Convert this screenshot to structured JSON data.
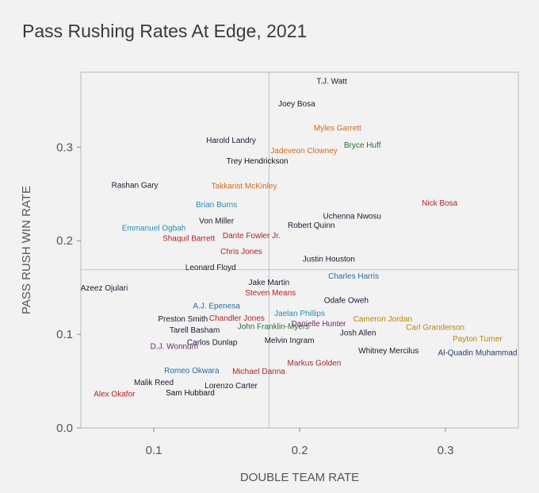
{
  "chart_data": {
    "type": "scatter",
    "title": "Pass Rushing Rates At Edge, 2021",
    "xlabel": "DOUBLE TEAM RATE",
    "ylabel": "PASS RUSH WIN RATE",
    "xlim": [
      0.05,
      0.35
    ],
    "ylim": [
      0.0,
      0.38
    ],
    "x_ticks": [
      {
        "value": 0.1,
        "label": "0.1"
      },
      {
        "value": 0.2,
        "label": "0.2"
      },
      {
        "value": 0.3,
        "label": "0.3"
      }
    ],
    "y_ticks": [
      {
        "value": 0.0,
        "label": "0.0"
      },
      {
        "value": 0.1,
        "label": "0.1"
      },
      {
        "value": 0.2,
        "label": "0.2"
      },
      {
        "value": 0.3,
        "label": "0.3"
      }
    ],
    "reference_lines": {
      "x": 0.179,
      "y": 0.169
    },
    "grid": false,
    "points": [
      {
        "label": "T.J. Watt",
        "x": 0.222,
        "y": 0.371,
        "color": "#1a1a2e"
      },
      {
        "label": "Joey Bosa",
        "x": 0.198,
        "y": 0.347,
        "color": "#1a1a2e"
      },
      {
        "label": "Myles Garrett",
        "x": 0.226,
        "y": 0.321,
        "color": "#d2691e"
      },
      {
        "label": "Harold Landry",
        "x": 0.153,
        "y": 0.308,
        "color": "#1a1a2e"
      },
      {
        "label": "Bryce Huff",
        "x": 0.243,
        "y": 0.303,
        "color": "#2e6b3a"
      },
      {
        "label": "Jadeveon Clowney",
        "x": 0.203,
        "y": 0.297,
        "color": "#d2691e"
      },
      {
        "label": "Trey Hendrickson",
        "x": 0.171,
        "y": 0.286,
        "color": "#111111"
      },
      {
        "label": "Rashan Gary",
        "x": 0.087,
        "y": 0.26,
        "color": "#1a1a2e"
      },
      {
        "label": "Takkarist McKinley",
        "x": 0.162,
        "y": 0.259,
        "color": "#d2691e"
      },
      {
        "label": "Brian Burns",
        "x": 0.143,
        "y": 0.239,
        "color": "#2a8fb0"
      },
      {
        "label": "Nick Bosa",
        "x": 0.296,
        "y": 0.241,
        "color": "#b22222"
      },
      {
        "label": "Uchenna Nwosu",
        "x": 0.236,
        "y": 0.227,
        "color": "#1a1a2e"
      },
      {
        "label": "Von Miller",
        "x": 0.143,
        "y": 0.222,
        "color": "#1a1a2e"
      },
      {
        "label": "Emmanuel Ogbah",
        "x": 0.1,
        "y": 0.214,
        "color": "#2a8fb0"
      },
      {
        "label": "Robert Quinn",
        "x": 0.208,
        "y": 0.217,
        "color": "#1a1a2e"
      },
      {
        "label": "Shaquil Barrett",
        "x": 0.124,
        "y": 0.203,
        "color": "#b22222"
      },
      {
        "label": "Dante Fowler Jr.",
        "x": 0.167,
        "y": 0.206,
        "color": "#b22222"
      },
      {
        "label": "Chris Jones",
        "x": 0.16,
        "y": 0.189,
        "color": "#b22222"
      },
      {
        "label": "Justin Houston",
        "x": 0.22,
        "y": 0.181,
        "color": "#1a1a2e"
      },
      {
        "label": "Leonard Floyd",
        "x": 0.139,
        "y": 0.172,
        "color": "#1a1a2e"
      },
      {
        "label": "Charles Harris",
        "x": 0.237,
        "y": 0.163,
        "color": "#2a6b9b"
      },
      {
        "label": "Jake Martin",
        "x": 0.179,
        "y": 0.156,
        "color": "#1a1a2e"
      },
      {
        "label": "Azeez Ojulari",
        "x": 0.066,
        "y": 0.15,
        "color": "#1a1a2e"
      },
      {
        "label": "Steven Means",
        "x": 0.18,
        "y": 0.145,
        "color": "#b22222"
      },
      {
        "label": "Odafe Oweh",
        "x": 0.232,
        "y": 0.137,
        "color": "#1a1a2e"
      },
      {
        "label": "A.J. Epenesa",
        "x": 0.143,
        "y": 0.131,
        "color": "#2a6b9b"
      },
      {
        "label": "Jaelan Phillips",
        "x": 0.2,
        "y": 0.123,
        "color": "#2a8fb0"
      },
      {
        "label": "Cameron Jordan",
        "x": 0.257,
        "y": 0.117,
        "color": "#b8860b"
      },
      {
        "label": "Preston Smith",
        "x": 0.12,
        "y": 0.117,
        "color": "#1a1a2e"
      },
      {
        "label": "Chandler Jones",
        "x": 0.157,
        "y": 0.118,
        "color": "#b22222"
      },
      {
        "label": "Danielle Hunter",
        "x": 0.213,
        "y": 0.112,
        "color": "#6b2a6b"
      },
      {
        "label": "Carl Granderson",
        "x": 0.293,
        "y": 0.108,
        "color": "#b8860b"
      },
      {
        "label": "John Franklin-Myers",
        "x": 0.182,
        "y": 0.109,
        "color": "#2e6b3a"
      },
      {
        "label": "Tarell Basham",
        "x": 0.128,
        "y": 0.105,
        "color": "#1a1a2e"
      },
      {
        "label": "Josh Allen",
        "x": 0.24,
        "y": 0.102,
        "color": "#1a1a2e"
      },
      {
        "label": "Payton Turner",
        "x": 0.322,
        "y": 0.096,
        "color": "#b8860b"
      },
      {
        "label": "Melvin Ingram",
        "x": 0.193,
        "y": 0.094,
        "color": "#1a1a2e"
      },
      {
        "label": "Carlos Dunlap",
        "x": 0.14,
        "y": 0.092,
        "color": "#1a1a2e"
      },
      {
        "label": "D.J. Wonnum",
        "x": 0.114,
        "y": 0.088,
        "color": "#6b2a6b"
      },
      {
        "label": "Whitney Mercilus",
        "x": 0.261,
        "y": 0.083,
        "color": "#1a1a2e"
      },
      {
        "label": "Al-Quadin Muhammad",
        "x": 0.322,
        "y": 0.081,
        "color": "#2a3a6b"
      },
      {
        "label": "Markus Golden",
        "x": 0.21,
        "y": 0.07,
        "color": "#b22222"
      },
      {
        "label": "Romeo Okwara",
        "x": 0.126,
        "y": 0.062,
        "color": "#2a6b9b"
      },
      {
        "label": "Michael Danna",
        "x": 0.172,
        "y": 0.061,
        "color": "#b22222"
      },
      {
        "label": "Malik Reed",
        "x": 0.1,
        "y": 0.049,
        "color": "#1a1a2e"
      },
      {
        "label": "Lorenzo Carter",
        "x": 0.153,
        "y": 0.046,
        "color": "#1a1a2e"
      },
      {
        "label": "Alex Okafor",
        "x": 0.073,
        "y": 0.037,
        "color": "#b22222"
      },
      {
        "label": "Sam Hubbard",
        "x": 0.125,
        "y": 0.038,
        "color": "#111111"
      }
    ]
  }
}
